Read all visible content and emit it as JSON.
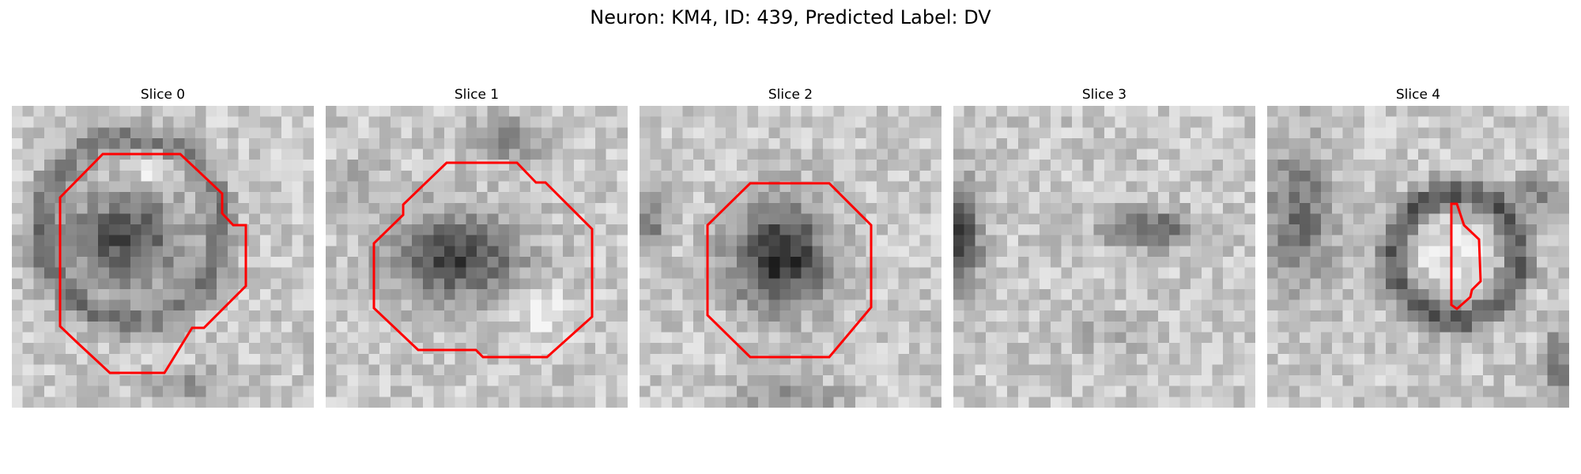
{
  "figure": {
    "title": "Neuron: KM4, ID: 439, Predicted Label: DV",
    "contour_color": "#ff0000"
  },
  "panels": [
    {
      "title": "Slice 0"
    },
    {
      "title": "Slice 1"
    },
    {
      "title": "Slice 2"
    },
    {
      "title": "Slice 3"
    },
    {
      "title": "Slice 4"
    }
  ]
}
